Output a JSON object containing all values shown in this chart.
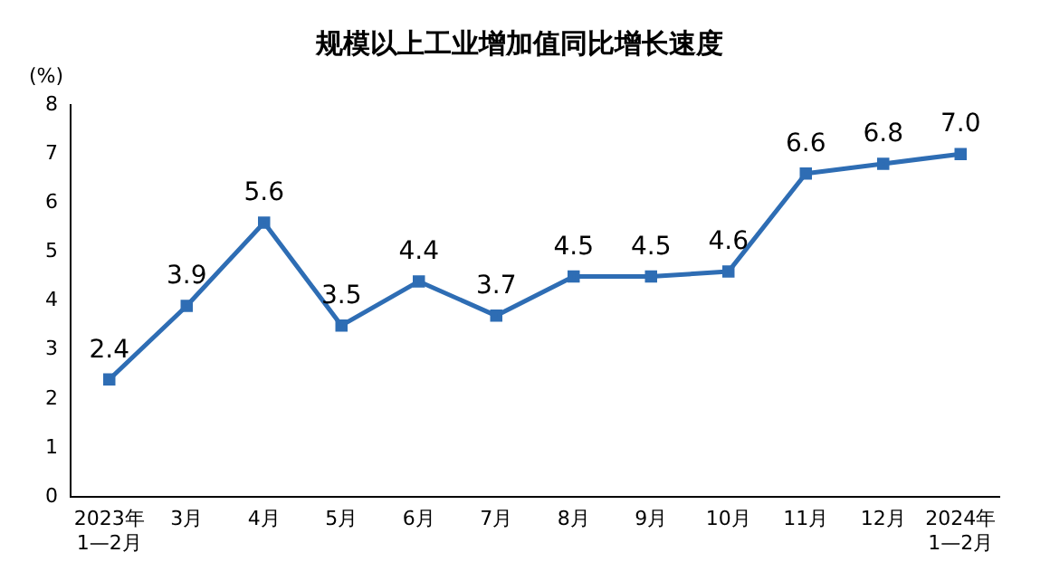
{
  "chart_data": {
    "type": "line",
    "title": "规模以上工业增加值同比增长速度",
    "ylabel": "(%)",
    "categories": [
      "2023年\n1—2月",
      "3月",
      "4月",
      "5月",
      "6月",
      "7月",
      "8月",
      "9月",
      "10月",
      "11月",
      "12月",
      "2024年\n1—2月"
    ],
    "series": [
      {
        "color": "#2e6db4",
        "values": [
          2.4,
          3.9,
          5.6,
          3.5,
          4.4,
          3.7,
          4.5,
          4.5,
          4.6,
          6.6,
          6.8,
          7.0
        ],
        "value_labels": [
          "2.4",
          "3.9",
          "5.6",
          "3.5",
          "4.4",
          "3.7",
          "4.5",
          "4.5",
          "4.6",
          "6.6",
          "6.8",
          "7.0"
        ]
      }
    ],
    "ylim": [
      0,
      8
    ],
    "yticks": [
      0,
      1,
      2,
      3,
      4,
      5,
      6,
      7,
      8
    ],
    "grid": false,
    "legend": false,
    "marker": "square",
    "line_style": "solid"
  }
}
